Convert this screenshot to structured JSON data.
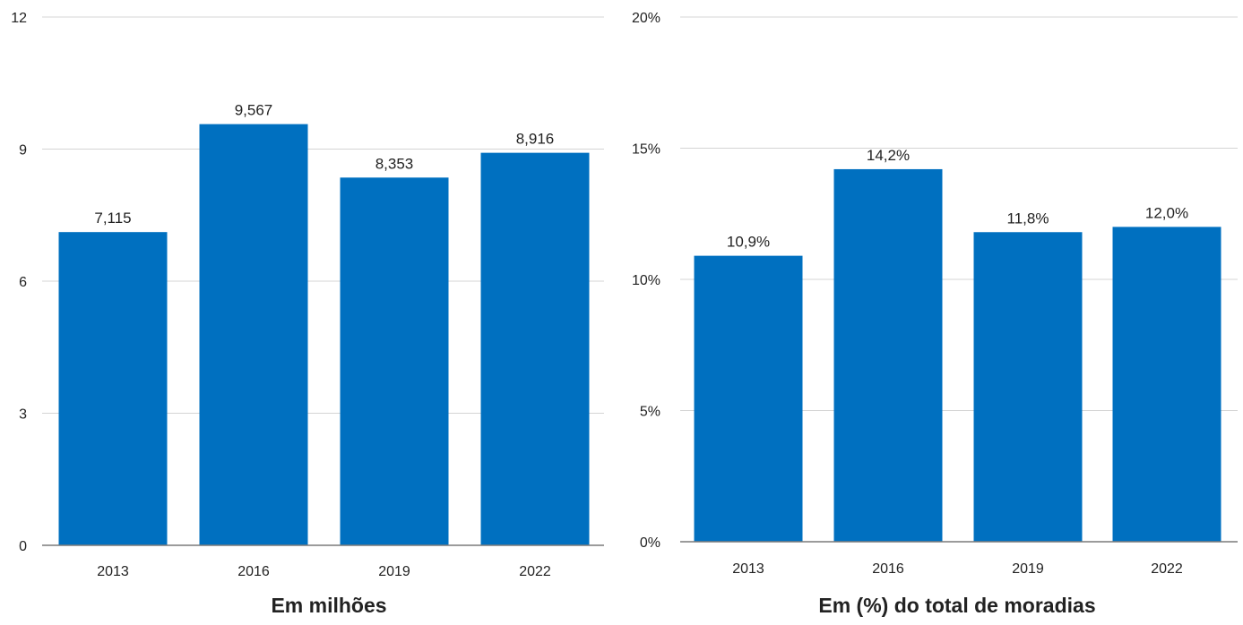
{
  "colors": {
    "bar": "#0070c0",
    "grid": "#d4d4d4",
    "axis": "#7a7a7a",
    "text": "#222222"
  },
  "chart_data": [
    {
      "type": "bar",
      "title": "",
      "xlabel": "Em milhões",
      "ylabel": "",
      "categories": [
        "2013",
        "2016",
        "2019",
        "2022"
      ],
      "values": [
        7.115,
        9.567,
        8.353,
        8.916
      ],
      "data_labels": [
        "7,115",
        "9,567",
        "8,353",
        "8,916"
      ],
      "ylim": [
        0,
        12
      ],
      "yticks": [
        0,
        3,
        6,
        9,
        12
      ],
      "ytick_labels": [
        "0",
        "3",
        "6",
        "9",
        "12"
      ],
      "grid": true,
      "legend": "none"
    },
    {
      "type": "bar",
      "title": "",
      "xlabel": "Em (%) do total de moradias",
      "ylabel": "",
      "categories": [
        "2013",
        "2016",
        "2019",
        "2022"
      ],
      "values": [
        10.9,
        14.2,
        11.8,
        12.0
      ],
      "data_labels": [
        "10,9%",
        "14,2%",
        "11,8%",
        "12,0%"
      ],
      "ylim": [
        0,
        20
      ],
      "yticks": [
        0,
        5,
        10,
        15,
        20
      ],
      "ytick_labels": [
        "0%",
        "5%",
        "10%",
        "15%",
        "20%"
      ],
      "grid": true,
      "legend": "none"
    }
  ]
}
